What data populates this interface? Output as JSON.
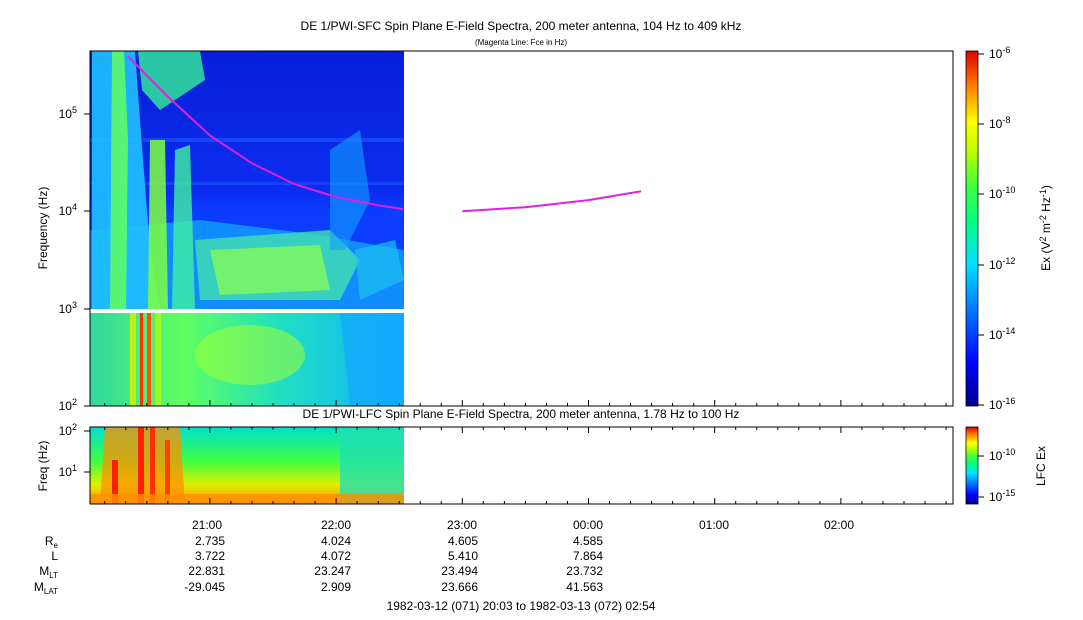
{
  "chart_data": [
    {
      "type": "heatmap",
      "title": "DE 1/PWI-SFC  Spin Plane E-Field Spectra, 200 meter antenna, 104 Hz to 409 kHz",
      "subtitle": "(Magenta Line: Fce in Hz)",
      "ylabel": "Frequency (Hz)",
      "yscale": "log",
      "ylim": [
        100,
        409000
      ],
      "ytick_labels": [
        "10^2",
        "10^3",
        "10^4",
        "10^5"
      ],
      "colorbar": {
        "label": "Ex (V^2 m^-2 Hz^-1)",
        "scale": "log",
        "range": [
          1e-16,
          1e-06
        ],
        "tick_labels": [
          "10^-6",
          "10^-8",
          "10^-10",
          "10^-12",
          "10^-14",
          "10^-16"
        ]
      },
      "data_extent_time": [
        "20:03",
        "22:32"
      ],
      "fce_line": {
        "name": "Fce",
        "segment_1": {
          "time": [
            "20:21",
            "20:40",
            "21:00",
            "21:20",
            "21:40",
            "22:00",
            "22:20",
            "22:32"
          ],
          "freq_hz": [
            390000,
            150000,
            60000,
            31000,
            19000,
            14000,
            11500,
            10500
          ]
        },
        "segment_2": {
          "time": [
            "23:00",
            "23:30",
            "00:00",
            "00:25"
          ],
          "freq_hz": [
            10000,
            11000,
            13000,
            16000
          ]
        }
      }
    },
    {
      "type": "heatmap",
      "title": "DE 1/PWI-LFC  Spin Plane E-Field Spectra, 200 meter antenna, 1.78 Hz to 100 Hz",
      "ylabel": "Freq (Hz)",
      "yscale": "log",
      "ylim": [
        1.78,
        100
      ],
      "ytick_labels": [
        "10^1",
        "10^2"
      ],
      "colorbar": {
        "label": "LFC Ex",
        "scale": "log",
        "tick_labels": [
          "10^-10",
          "10^-15"
        ]
      },
      "data_extent_time": [
        "20:03",
        "22:32"
      ]
    }
  ],
  "xaxis": {
    "time_labels": [
      "21:00",
      "22:00",
      "23:00",
      "00:00",
      "01:00",
      "02:00"
    ]
  },
  "ephemeris": {
    "rows": [
      {
        "label": "R",
        "sub": "e",
        "values": [
          "2.735",
          "4.024",
          "4.605",
          "4.585"
        ]
      },
      {
        "label": "L",
        "sub": "",
        "values": [
          "3.722",
          "4.072",
          "5.410",
          "7.864"
        ]
      },
      {
        "label": "M",
        "sub": "LT",
        "values": [
          "22.831",
          "23.247",
          "23.494",
          "23.732"
        ]
      },
      {
        "label": "M",
        "sub": "LAT",
        "values": [
          "-29.045",
          "2.909",
          "23.666",
          "41.563"
        ]
      }
    ]
  },
  "time_range": "1982-03-12 (071) 20:03 to 1982-03-13 (072) 02:54",
  "colors": {
    "fce_line": "#e020e0",
    "axis": "#000000",
    "background": "#ffffff"
  }
}
